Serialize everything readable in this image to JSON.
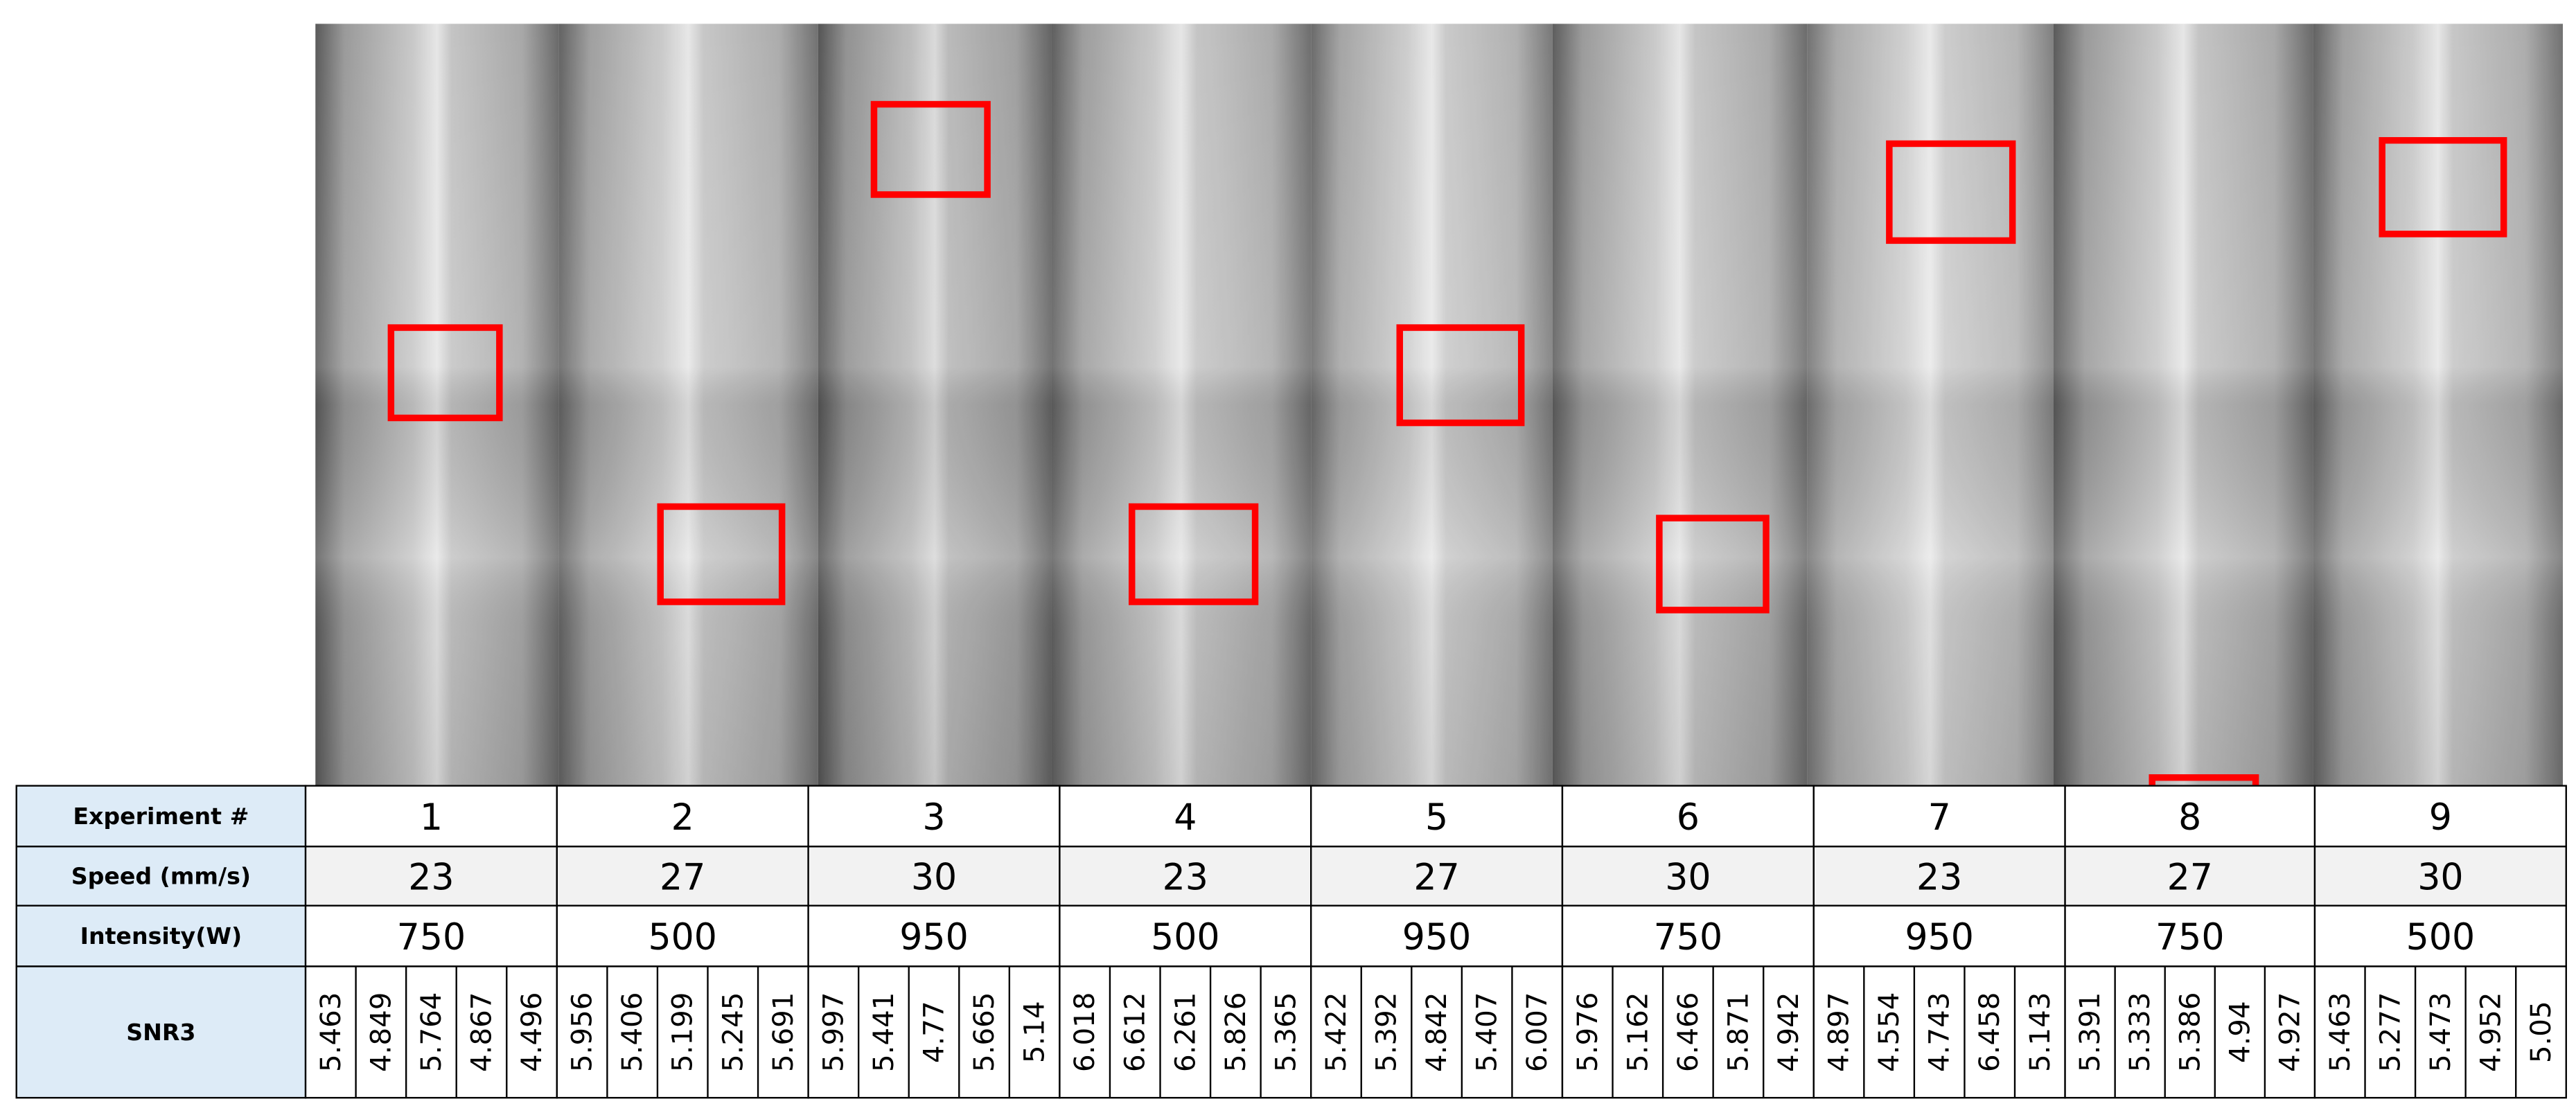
{
  "table": {
    "row_headers": [
      "Experiment #",
      "Speed (mm/s)",
      "Intensity(W)",
      "SNR3"
    ],
    "experiments": [
      1,
      2,
      3,
      4,
      5,
      6,
      7,
      8,
      9
    ],
    "speed": [
      23,
      27,
      30,
      23,
      27,
      30,
      23,
      27,
      30
    ],
    "intensity": [
      750,
      500,
      950,
      500,
      950,
      750,
      950,
      750,
      500
    ],
    "snr3": [
      [
        5.463,
        4.849,
        5.764,
        4.867,
        4.496
      ],
      [
        5.956,
        5.406,
        5.199,
        5.245,
        5.691
      ],
      [
        5.997,
        5.441,
        4.77,
        5.665,
        5.14
      ],
      [
        6.018,
        6.612,
        6.261,
        5.826,
        5.365
      ],
      [
        5.422,
        5.392,
        4.842,
        5.407,
        6.007
      ],
      [
        5.976,
        5.162,
        6.466,
        5.871,
        4.942
      ],
      [
        4.897,
        4.554,
        4.743,
        6.458,
        5.143
      ],
      [
        5.391,
        5.333,
        5.386,
        4.94,
        4.927
      ],
      [
        5.463,
        5.277,
        5.473,
        4.952,
        5.05
      ]
    ]
  }
}
